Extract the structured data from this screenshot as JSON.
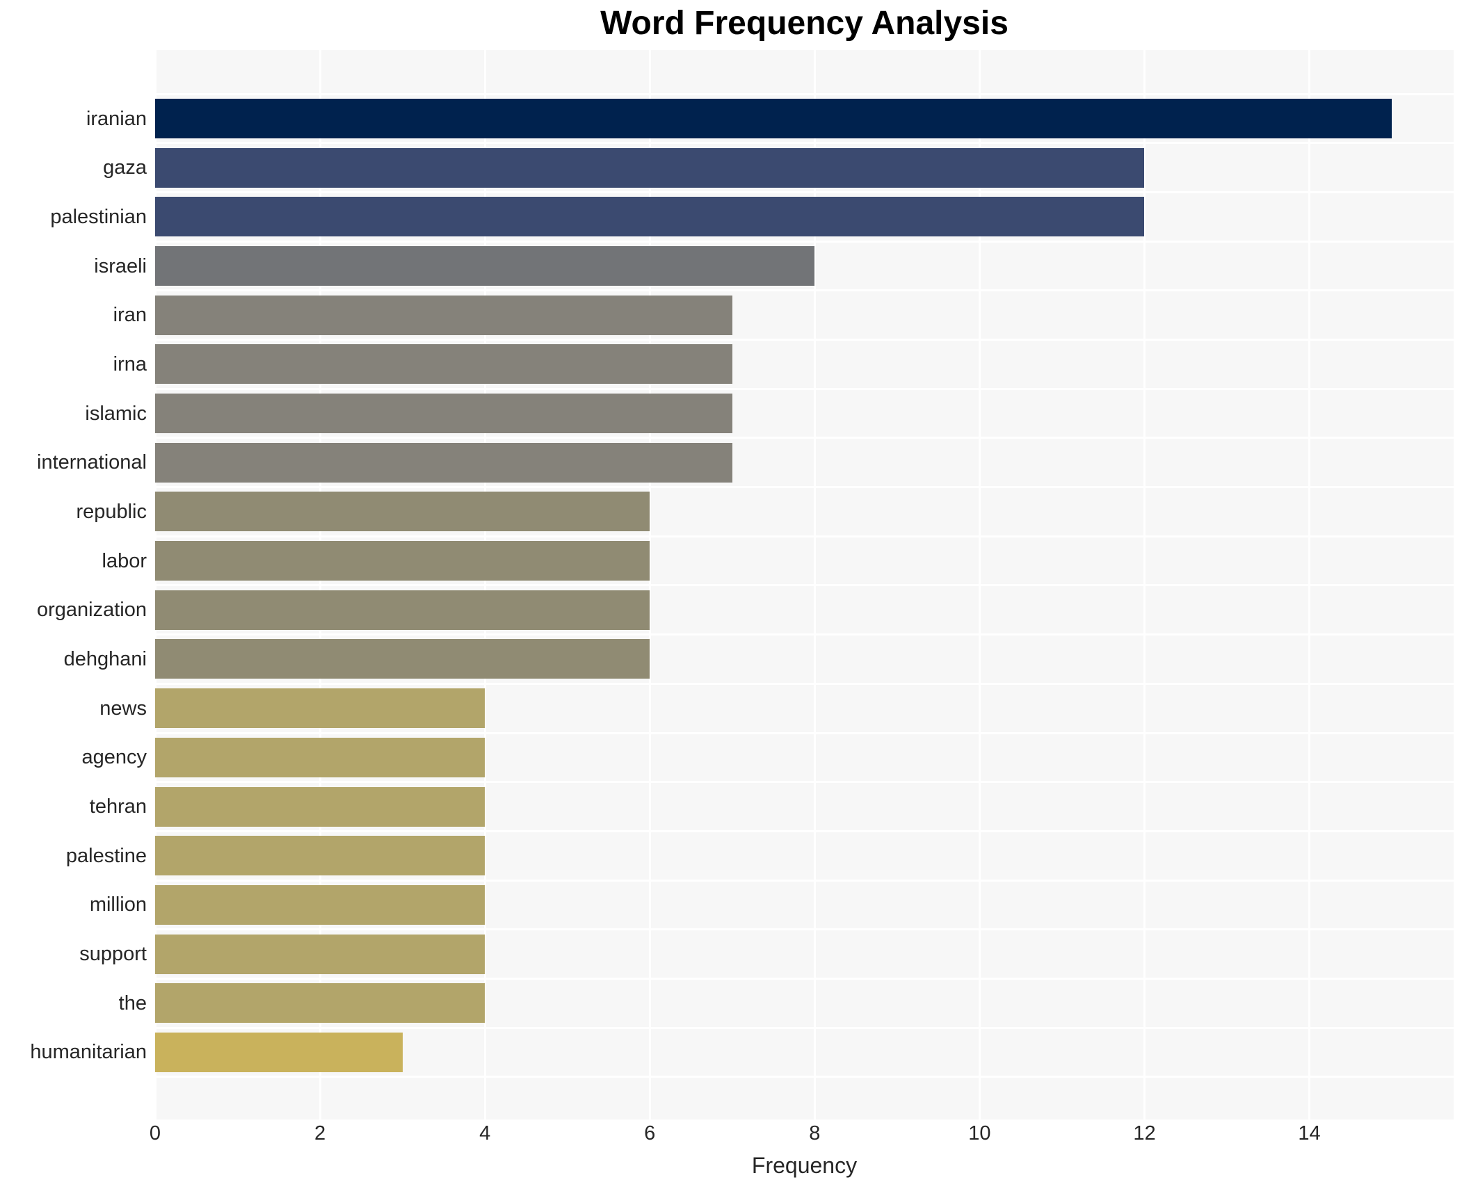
{
  "chart_data": {
    "type": "bar",
    "orientation": "horizontal",
    "title": "Word Frequency Analysis",
    "xlabel": "Frequency",
    "ylabel": "",
    "categories": [
      "iranian",
      "gaza",
      "palestinian",
      "israeli",
      "iran",
      "irna",
      "islamic",
      "international",
      "republic",
      "labor",
      "organization",
      "dehghani",
      "news",
      "agency",
      "tehran",
      "palestine",
      "million",
      "support",
      "the",
      "humanitarian"
    ],
    "values": [
      15,
      12,
      12,
      8,
      7,
      7,
      7,
      7,
      6,
      6,
      6,
      6,
      4,
      4,
      4,
      4,
      4,
      4,
      4,
      3
    ],
    "bar_colors": [
      "#00224e",
      "#3b4a70",
      "#3b4a70",
      "#727477",
      "#85827a",
      "#85827a",
      "#85827a",
      "#85827a",
      "#908b73",
      "#908b73",
      "#908b73",
      "#908b73",
      "#b2a56a",
      "#b2a56a",
      "#b2a56a",
      "#b2a56a",
      "#b2a56a",
      "#b2a56a",
      "#b2a56a",
      "#c9b25c"
    ],
    "xticks": [
      0,
      2,
      4,
      6,
      8,
      10,
      12,
      14
    ],
    "xlim": [
      0,
      15.75
    ],
    "grid": true,
    "legend": false,
    "colormap": "cividis-reversed",
    "colors": {
      "figure_background": "#ffffff",
      "plot_background": "#f7f7f7",
      "gridline": "#ffffff",
      "title_text": "#000000",
      "tick_text": "#262626"
    }
  }
}
